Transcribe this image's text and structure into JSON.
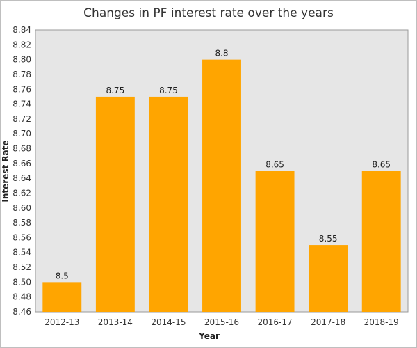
{
  "chart_data": {
    "type": "bar",
    "title": "Changes in PF interest rate over the years",
    "xlabel": "Year",
    "ylabel": "Interest Rate",
    "categories": [
      "2012-13",
      "2013-14",
      "2014-15",
      "2015-16",
      "2016-17",
      "2017-18",
      "2018-19"
    ],
    "values": [
      8.5,
      8.75,
      8.75,
      8.8,
      8.65,
      8.55,
      8.65
    ],
    "value_labels": [
      "8.5",
      "8.75",
      "8.75",
      "8.8",
      "8.65",
      "8.55",
      "8.65"
    ],
    "ylim": [
      8.46,
      8.84
    ],
    "yticks": [
      "8.46",
      "8.48",
      "8.50",
      "8.52",
      "8.54",
      "8.56",
      "8.58",
      "8.60",
      "8.62",
      "8.64",
      "8.66",
      "8.68",
      "8.70",
      "8.72",
      "8.74",
      "8.76",
      "8.78",
      "8.80",
      "8.82",
      "8.84"
    ],
    "grid": false,
    "legend": "none",
    "bar_color": "#FFA500",
    "plot_background": "#E6E6E6"
  }
}
